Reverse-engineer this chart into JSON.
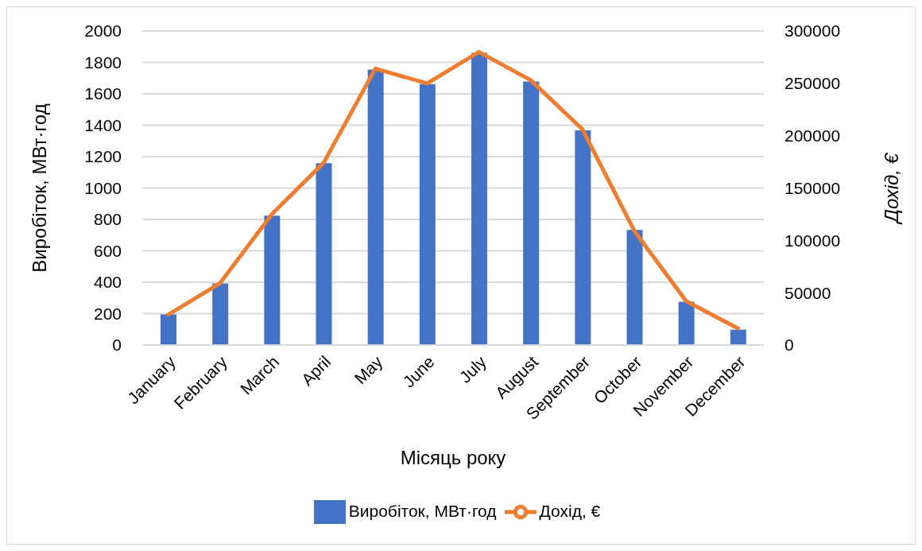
{
  "chart_data": {
    "type": "bar",
    "xlabel": "Місяць року",
    "ylabel": "Виробіток, МВт·год",
    "y2label": "Дохід, €",
    "categories": [
      "January",
      "February",
      "March",
      "April",
      "May",
      "June",
      "July",
      "August",
      "September",
      "October",
      "November",
      "December"
    ],
    "series": [
      {
        "name": "Виробіток, МВт·год",
        "color": "#4472c4",
        "values": [
          195,
          393,
          824,
          1158,
          1755,
          1662,
          1861,
          1679,
          1367,
          733,
          276,
          98
        ]
      },
      {
        "name": "Дохід, €",
        "type": "line",
        "axis": "y2",
        "color": "#ed7d31",
        "values": [
          29000,
          59000,
          125000,
          174000,
          264000,
          250000,
          280000,
          253000,
          206000,
          109000,
          42000,
          16000
        ]
      }
    ],
    "ylim": [
      0,
      2000
    ],
    "yticks": [
      0,
      200,
      400,
      600,
      800,
      1000,
      1200,
      1400,
      1600,
      1800,
      2000
    ],
    "y2lim": [
      0,
      300000
    ],
    "y2ticks": [
      0,
      50000,
      100000,
      150000,
      200000,
      250000,
      300000
    ],
    "grid": "y",
    "legend": "bottom",
    "marker": "none",
    "line_style": "solid"
  }
}
